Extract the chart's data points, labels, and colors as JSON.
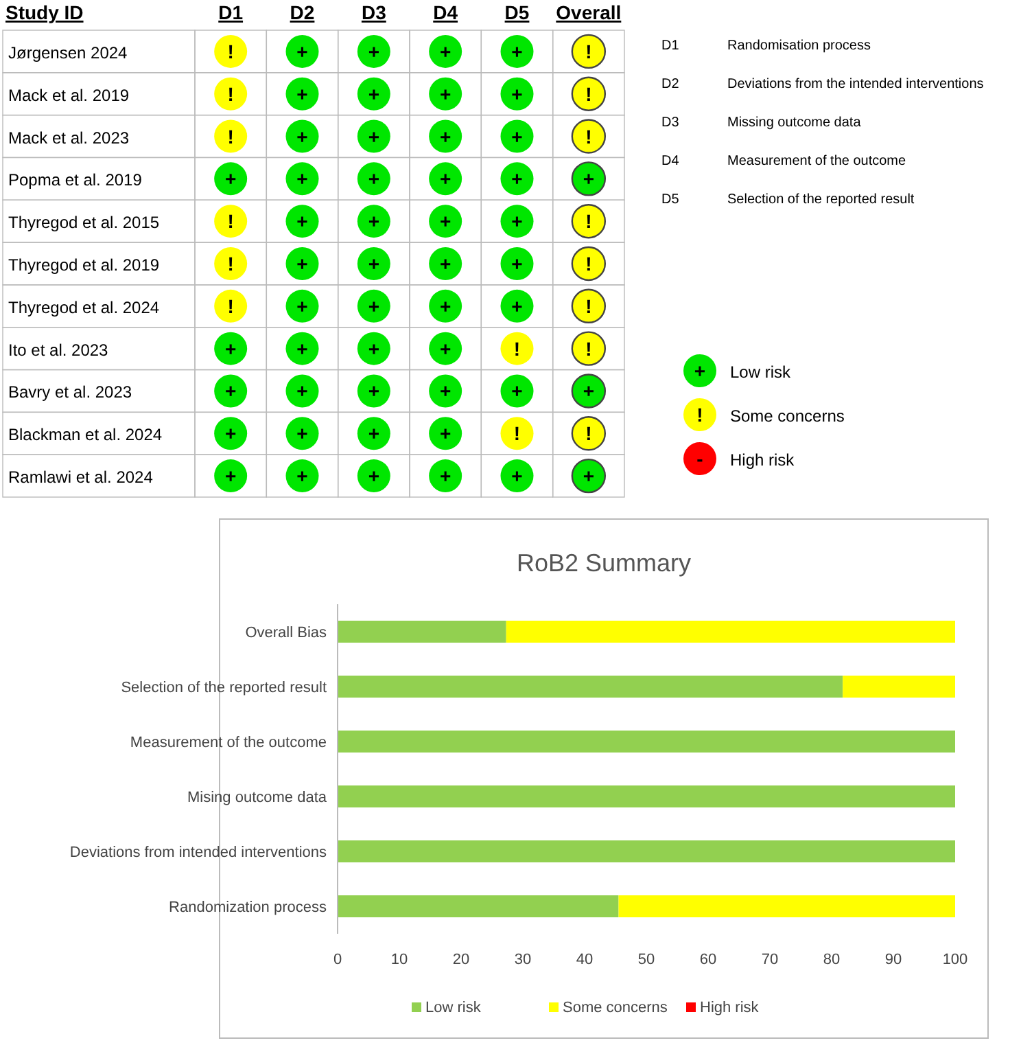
{
  "chart_data": [
    {
      "type": "heatmap",
      "ylabel": "Study ID",
      "categories": [
        "D1",
        "D2",
        "D3",
        "D4",
        "D5",
        "Overall"
      ],
      "y_categories": [
        "Jørgensen 2024",
        "Mack et al. 2019",
        "Mack et al. 2023",
        "Popma et al. 2019",
        "Thyregod et al. 2015",
        "Thyregod et al. 2019",
        "Thyregod et al. 2024",
        "Ito et al. 2023",
        "Bavry et al. 2023",
        "Blackman et al. 2024",
        "Ramlawi et al. 2024"
      ],
      "cells": [
        [
          "!",
          "+",
          "+",
          "+",
          "+",
          "!"
        ],
        [
          "!",
          "+",
          "+",
          "+",
          "+",
          "!"
        ],
        [
          "!",
          "+",
          "+",
          "+",
          "+",
          "!"
        ],
        [
          "+",
          "+",
          "+",
          "+",
          "+",
          "+"
        ],
        [
          "!",
          "+",
          "+",
          "+",
          "+",
          "!"
        ],
        [
          "!",
          "+",
          "+",
          "+",
          "+",
          "!"
        ],
        [
          "!",
          "+",
          "+",
          "+",
          "+",
          "!"
        ],
        [
          "+",
          "+",
          "+",
          "+",
          "!",
          "!"
        ],
        [
          "+",
          "+",
          "+",
          "+",
          "+",
          "+"
        ],
        [
          "+",
          "+",
          "+",
          "+",
          "!",
          "!"
        ],
        [
          "+",
          "+",
          "+",
          "+",
          "+",
          "+"
        ]
      ],
      "colors": [
        "#00e600",
        "#ffff00",
        "#ff0000"
      ],
      "annotations": [
        "D1",
        "Randomisation process",
        "D2",
        "Deviations from the intended interventions",
        "D3",
        "Missing outcome data",
        "D4",
        "Measurement of the outcome",
        "D5",
        "Selection of the reported result",
        "+",
        "Low risk",
        "!",
        "Some concerns",
        "-",
        "High risk"
      ]
    },
    {
      "type": "bar",
      "orientation": "horizontal",
      "stacked": true,
      "title": "RoB2 Summary",
      "categories": [
        "Overall Bias",
        "Selection of the reported result",
        "Measurement of the outcome",
        "Mising outcome data",
        "Deviations from intended interventions",
        "Randomization process"
      ],
      "series": [
        {
          "name": "Low risk",
          "color": "#92d050",
          "values": [
            27.3,
            81.8,
            100,
            100,
            100,
            45.5
          ]
        },
        {
          "name": "Some concerns",
          "color": "#ffff00",
          "values": [
            72.7,
            18.2,
            0,
            0,
            0,
            54.5
          ]
        },
        {
          "name": "High risk",
          "color": "#ff0000",
          "values": [
            0,
            0,
            0,
            0,
            0,
            0
          ]
        }
      ],
      "xlim": [
        0,
        100
      ],
      "xticks": [
        0,
        10,
        20,
        30,
        40,
        50,
        60,
        70,
        80,
        90,
        100
      ],
      "legend": "bottom"
    }
  ]
}
